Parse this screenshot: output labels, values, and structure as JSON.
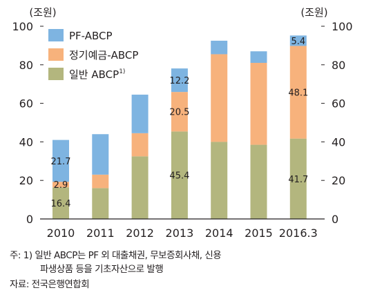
{
  "chart_data": {
    "type": "bar",
    "stacked": true,
    "categories": [
      "2010",
      "2011",
      "2012",
      "2013",
      "2014",
      "2015",
      "2016.3"
    ],
    "series": [
      {
        "name": "일반 ABCP",
        "superscript": "1)",
        "color": "#b3b67e",
        "values": [
          16.4,
          16.0,
          32.5,
          45.4,
          40.0,
          38.5,
          41.7
        ]
      },
      {
        "name": "정기예금-ABCP",
        "superscript": "",
        "color": "#f7b27c",
        "values": [
          2.9,
          7.0,
          12.0,
          20.5,
          45.5,
          42.5,
          48.1
        ]
      },
      {
        "name": "PF-ABCP",
        "superscript": "",
        "color": "#7eb4e1",
        "values": [
          21.7,
          21.0,
          20.0,
          12.2,
          7.0,
          6.0,
          5.4
        ]
      }
    ],
    "data_labels": [
      {
        "category": "2010",
        "series": "일반 ABCP",
        "text": "16.4"
      },
      {
        "category": "2010",
        "series": "정기예금-ABCP",
        "text": "2.9"
      },
      {
        "category": "2010",
        "series": "PF-ABCP",
        "text": "21.7"
      },
      {
        "category": "2013",
        "series": "일반 ABCP",
        "text": "45.4"
      },
      {
        "category": "2013",
        "series": "정기예금-ABCP",
        "text": "20.5"
      },
      {
        "category": "2013",
        "series": "PF-ABCP",
        "text": "12.2"
      },
      {
        "category": "2016.3",
        "series": "일반 ABCP",
        "text": "41.7"
      },
      {
        "category": "2016.3",
        "series": "정기예금-ABCP",
        "text": "48.1"
      },
      {
        "category": "2016.3",
        "series": "PF-ABCP",
        "text": "5.4"
      }
    ],
    "y_left_unit": "(조원)",
    "y_right_unit": "(조원)",
    "ylim": [
      0,
      100
    ],
    "yticks": [
      0,
      20,
      40,
      60,
      80,
      100
    ],
    "legend_position": "top-left",
    "grid": false
  },
  "notes": {
    "note_prefix": "주: 1)",
    "note_line1": "일반 ABCP는 PF 외 대출채권, 무보증회사채, 신용",
    "note_line2": "파생상품 등을 기초자산으로 발행",
    "source": "자료: 전국은행연합회"
  }
}
